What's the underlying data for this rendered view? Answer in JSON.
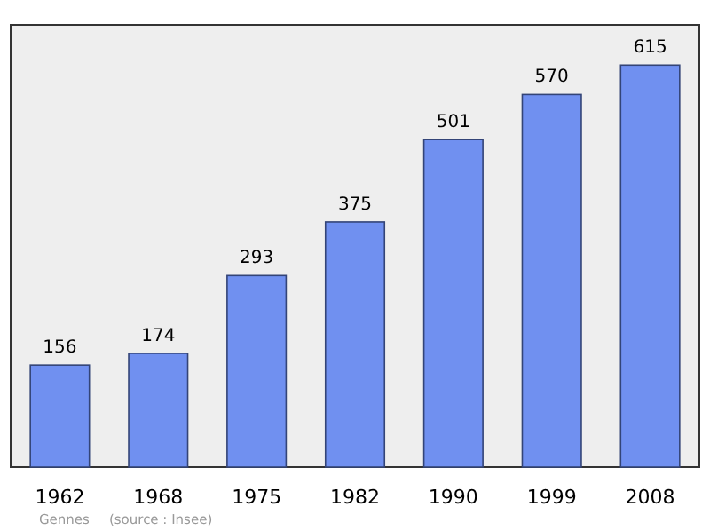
{
  "chart_data": {
    "type": "bar",
    "categories": [
      "1962",
      "1968",
      "1975",
      "1982",
      "1990",
      "1999",
      "2008"
    ],
    "values": [
      156,
      174,
      293,
      375,
      501,
      570,
      615
    ],
    "color": "#7090f0",
    "data_labels": true,
    "grid": false,
    "annotations": [
      "Gennes",
      "(source : Insee)"
    ]
  }
}
